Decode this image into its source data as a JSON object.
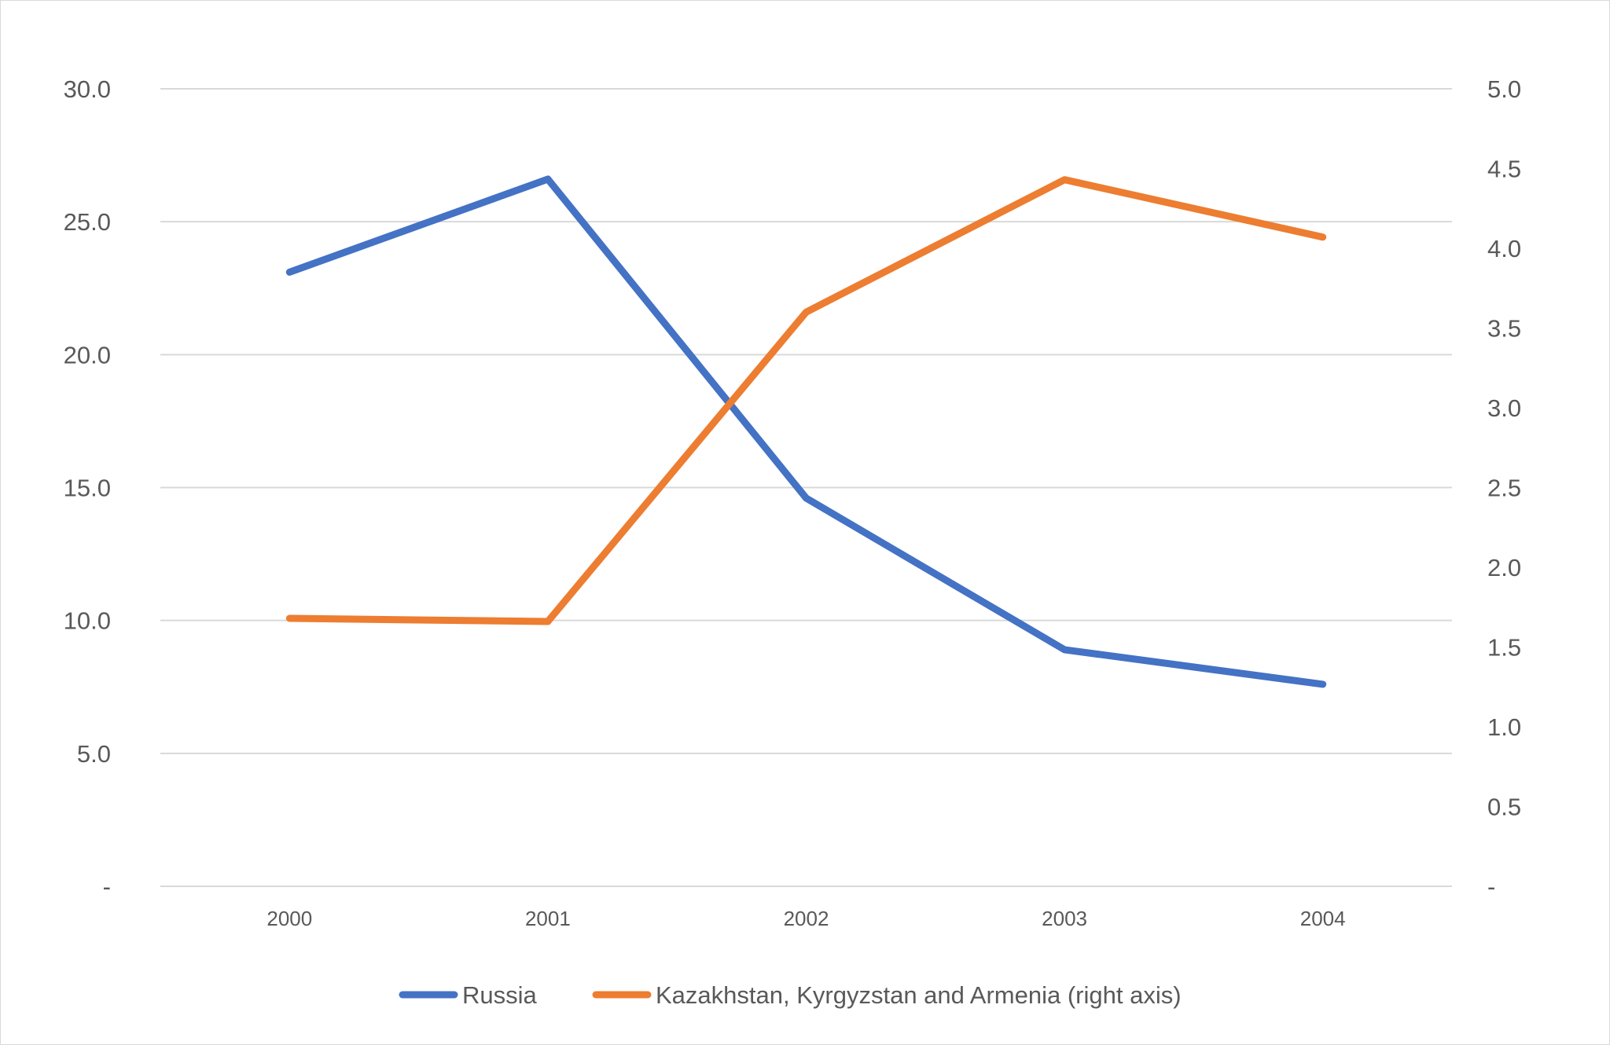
{
  "chart_data": {
    "type": "line",
    "categories": [
      "2000",
      "2001",
      "2002",
      "2003",
      "2004"
    ],
    "series": [
      {
        "name": "Russia",
        "axis": "left",
        "color": "#4472c4",
        "values": [
          23.1,
          26.6,
          14.6,
          8.9,
          7.6
        ]
      },
      {
        "name": "Kazakhstan, Kyrgyzstan and Armenia (right axis)",
        "axis": "right",
        "color": "#ed7d31",
        "values": [
          1.68,
          1.66,
          3.6,
          4.43,
          4.07
        ]
      }
    ],
    "y_left": {
      "ylim": [
        0,
        30
      ],
      "ticks": [
        0,
        5,
        10,
        15,
        20,
        25,
        30
      ],
      "tick_labels": [
        "-",
        "5.0",
        "10.0",
        "15.0",
        "20.0",
        "25.0",
        "30.0"
      ]
    },
    "y_right": {
      "ylim": [
        0,
        5
      ],
      "ticks": [
        0,
        0.5,
        1,
        1.5,
        2,
        2.5,
        3,
        3.5,
        4,
        4.5,
        5
      ],
      "tick_labels": [
        "-",
        "0.5",
        "1.0",
        "1.5",
        "2.0",
        "2.5",
        "3.0",
        "3.5",
        "4.0",
        "4.5",
        "5.0"
      ]
    },
    "grid": true,
    "legend_position": "bottom"
  }
}
